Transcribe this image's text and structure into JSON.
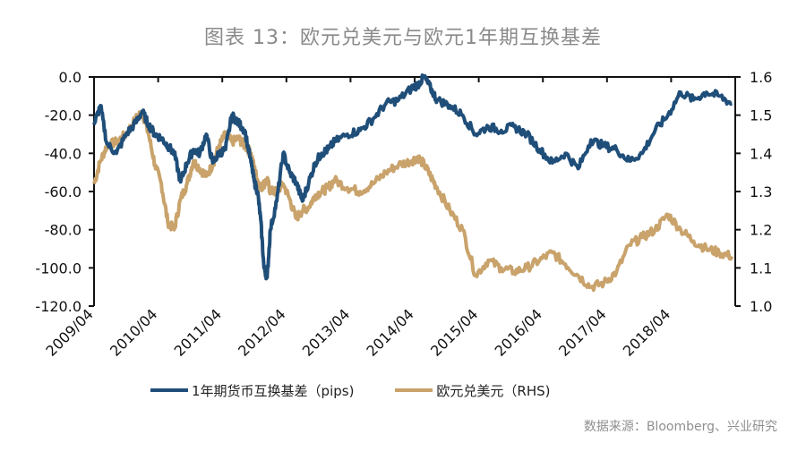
{
  "title": "图表 13：欧元兑美元与欧元1年期互换基差",
  "source": "数据来源：Bloomberg、兴业研究",
  "legend": {
    "items": [
      {
        "label": "1年期货币互换基差（pips)",
        "color": "#1f4e79"
      },
      {
        "label": "欧元兑美元（RHS)",
        "color": "#c9a36b"
      }
    ]
  },
  "axes": {
    "left_ticks": [
      "0.0",
      "-20.0",
      "-40.0",
      "-60.0",
      "-80.0",
      "-100.0",
      "-120.0"
    ],
    "right_ticks": [
      "1.6",
      "1.5",
      "1.4",
      "1.3",
      "1.2",
      "1.1",
      "1.0"
    ],
    "x_ticks": [
      "2009/04",
      "2010/04",
      "2011/04",
      "2012/04",
      "2013/04",
      "2014/04",
      "2015/04",
      "2016/04",
      "2017/04",
      "2018/04"
    ]
  },
  "chart_data": {
    "type": "line",
    "title": "图表 13：欧元兑美元与欧元1年期互换基差",
    "xlabel": "",
    "ylabel": "1年期货币互换基差 (pips)",
    "ylabel_right": "欧元兑美元 (RHS)",
    "ylim": [
      -120,
      0
    ],
    "ylim_right": [
      1.0,
      1.6
    ],
    "grid": false,
    "legend_position": "bottom",
    "x_tick_labels": [
      "2009/04",
      "2010/04",
      "2011/04",
      "2012/04",
      "2013/04",
      "2014/04",
      "2015/04",
      "2016/04",
      "2017/04",
      "2018/04"
    ],
    "x": [
      2009.25,
      2009.35,
      2009.45,
      2009.6,
      2009.75,
      2009.9,
      2010.0,
      2010.1,
      2010.2,
      2010.3,
      2010.4,
      2010.5,
      2010.6,
      2010.7,
      2010.8,
      2010.9,
      2011.0,
      2011.1,
      2011.2,
      2011.3,
      2011.4,
      2011.5,
      2011.6,
      2011.7,
      2011.75,
      2011.8,
      2011.85,
      2011.9,
      2011.95,
      2012.0,
      2012.1,
      2012.2,
      2012.3,
      2012.4,
      2012.5,
      2012.6,
      2012.7,
      2012.8,
      2012.9,
      2013.0,
      2013.2,
      2013.4,
      2013.6,
      2013.8,
      2014.0,
      2014.2,
      2014.3,
      2014.4,
      2014.5,
      2014.6,
      2014.8,
      2015.0,
      2015.2,
      2015.4,
      2015.6,
      2015.8,
      2016.0,
      2016.2,
      2016.4,
      2016.6,
      2016.8,
      2017.0,
      2017.2,
      2017.4,
      2017.6,
      2017.8,
      2018.0,
      2018.2,
      2018.4,
      2018.6,
      2018.8,
      2019.0,
      2019.2
    ],
    "series": [
      {
        "name": "1年期货币互换基差（pips)",
        "axis": "left",
        "color": "#1f4e79",
        "values": [
          -25,
          -15,
          -35,
          -40,
          -30,
          -24,
          -18,
          -25,
          -30,
          -32,
          -36,
          -40,
          -55,
          -45,
          -38,
          -40,
          -30,
          -45,
          -40,
          -38,
          -20,
          -24,
          -28,
          -45,
          -55,
          -60,
          -75,
          -100,
          -105,
          -80,
          -65,
          -40,
          -50,
          -55,
          -65,
          -55,
          -45,
          -40,
          -38,
          -34,
          -30,
          -28,
          -22,
          -14,
          -12,
          -6,
          -4,
          0,
          -6,
          -12,
          -15,
          -20,
          -30,
          -26,
          -28,
          -26,
          -30,
          -38,
          -45,
          -40,
          -48,
          -33,
          -36,
          -38,
          -44,
          -40,
          -28,
          -20,
          -8,
          -12,
          -8,
          -10,
          -14
        ]
      },
      {
        "name": "欧元兑美元（RHS)",
        "axis": "right",
        "color": "#c9a36b",
        "values": [
          1.32,
          1.38,
          1.42,
          1.43,
          1.45,
          1.49,
          1.51,
          1.45,
          1.37,
          1.32,
          1.22,
          1.2,
          1.28,
          1.32,
          1.38,
          1.36,
          1.34,
          1.37,
          1.42,
          1.45,
          1.43,
          1.44,
          1.42,
          1.4,
          1.36,
          1.33,
          1.31,
          1.32,
          1.33,
          1.3,
          1.3,
          1.32,
          1.28,
          1.23,
          1.25,
          1.26,
          1.29,
          1.3,
          1.31,
          1.33,
          1.31,
          1.3,
          1.32,
          1.35,
          1.37,
          1.38,
          1.39,
          1.37,
          1.34,
          1.31,
          1.25,
          1.2,
          1.08,
          1.12,
          1.1,
          1.09,
          1.1,
          1.12,
          1.14,
          1.11,
          1.08,
          1.05,
          1.06,
          1.09,
          1.16,
          1.18,
          1.2,
          1.24,
          1.2,
          1.17,
          1.15,
          1.14,
          1.13
        ]
      }
    ]
  }
}
